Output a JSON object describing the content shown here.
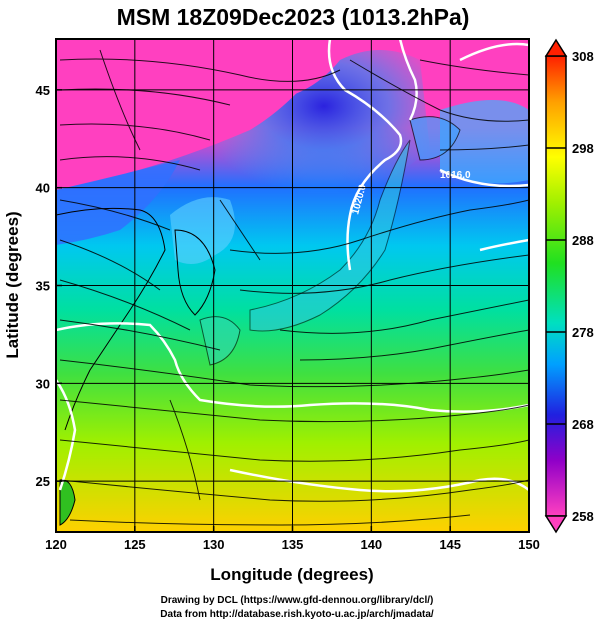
{
  "title": "MSM 18Z09Dec2023 (1013.2hPa)",
  "chart_data": {
    "type": "heatmap",
    "title": "MSM 18Z09Dec2023 (1013.2hPa)",
    "xlabel": "Longitude (degrees)",
    "ylabel": "Latitude  (degrees)",
    "xlim": [
      120,
      150
    ],
    "ylim": [
      22.4,
      47.6
    ],
    "x_ticks": [
      120,
      125,
      130,
      135,
      140,
      145,
      150
    ],
    "y_ticks": [
      25,
      30,
      35,
      40,
      45
    ],
    "x_tick_labels": [
      "120",
      "125",
      "130",
      "135",
      "140",
      "145",
      "150"
    ],
    "y_tick_labels": [
      "25",
      "30",
      "35",
      "40",
      "45"
    ],
    "grid": true,
    "colorbar": {
      "min": 258,
      "max": 308,
      "ticks": [
        258,
        268,
        278,
        288,
        298,
        308
      ],
      "tick_labels": [
        "258",
        "268",
        "278",
        "288",
        "298",
        "308"
      ],
      "colors": [
        "#ff40c0",
        "#9000c8",
        "#2020e0",
        "#00a0ff",
        "#00e0c0",
        "#20e020",
        "#a0f000",
        "#ffff00",
        "#ffa000",
        "#ff2000"
      ]
    },
    "contour_labels": [
      "1020.0",
      "1016.0"
    ]
  },
  "credits": {
    "line1": "Drawing by DCL (https://www.gfd-dennou.org/library/dcl/)",
    "line2": "Data from http://database.rish.kyoto-u.ac.jp/arch/jmadata/"
  }
}
